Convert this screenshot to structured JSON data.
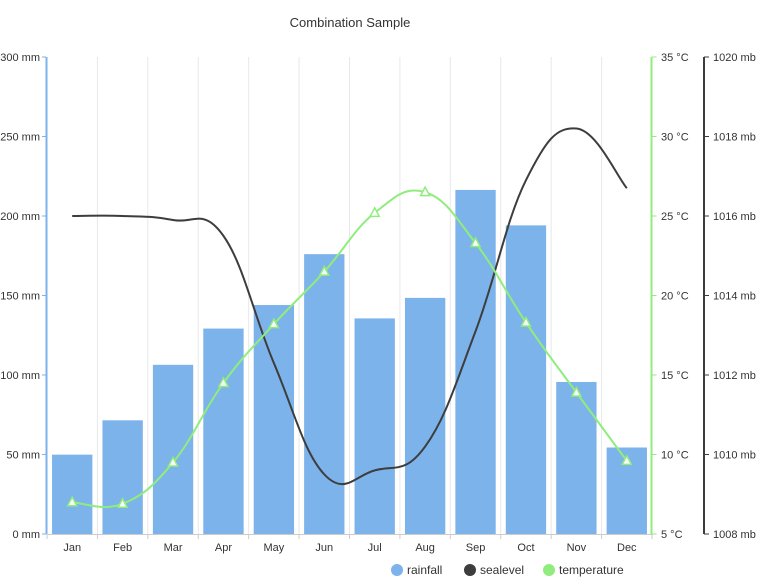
{
  "chart_data": {
    "type": "bar",
    "title": "Combination Sample",
    "categories": [
      "Jan",
      "Feb",
      "Mar",
      "Apr",
      "May",
      "Jun",
      "Jul",
      "Aug",
      "Sep",
      "Oct",
      "Nov",
      "Dec"
    ],
    "series": [
      {
        "name": "rainfall",
        "type": "bar",
        "axis": "left",
        "color": "#7cb3ea",
        "values": [
          49.9,
          71.5,
          106.4,
          129.2,
          144.0,
          176.0,
          135.6,
          148.5,
          216.4,
          194.1,
          95.6,
          54.4
        ]
      },
      {
        "name": "sealevel",
        "type": "line",
        "smooth": true,
        "axis": "right2",
        "color": "#3d3d3d",
        "values": [
          1016,
          1016,
          1015.9,
          1015.5,
          1012.3,
          1009.5,
          1009.6,
          1010.2,
          1013.1,
          1016.9,
          1018.2,
          1016.7
        ]
      },
      {
        "name": "temperature",
        "type": "line",
        "smooth": true,
        "axis": "right1",
        "color": "#90ed7d",
        "marker": "triangle",
        "values": [
          7.0,
          6.9,
          9.5,
          14.5,
          18.2,
          21.5,
          25.2,
          26.5,
          23.3,
          18.3,
          13.9,
          9.6
        ]
      }
    ],
    "axes": {
      "left": {
        "min": 0,
        "max": 300,
        "ticks": [
          0,
          50,
          100,
          150,
          200,
          250,
          300
        ],
        "labels": [
          "0 mm",
          "50 mm",
          "100 mm",
          "150 mm",
          "200 mm",
          "250 mm",
          "300 mm"
        ],
        "color": "#7cb3ea"
      },
      "right1": {
        "min": 5,
        "max": 35,
        "ticks": [
          5,
          10,
          15,
          20,
          25,
          30,
          35
        ],
        "labels": [
          "5 °C",
          "10 °C",
          "15 °C",
          "20 °C",
          "25 °C",
          "30 °C",
          "35 °C"
        ],
        "color": "#90ed7d"
      },
      "right2": {
        "min": 1008,
        "max": 1020,
        "ticks": [
          1008,
          1010,
          1012,
          1014,
          1016,
          1018,
          1020
        ],
        "labels": [
          "1008 mb",
          "1010 mb",
          "1012 mb",
          "1014 mb",
          "1016 mb",
          "1018 mb",
          "1020 mb"
        ],
        "color": "#3d3d3d"
      }
    },
    "grid": true,
    "legend": "bottom-right"
  }
}
